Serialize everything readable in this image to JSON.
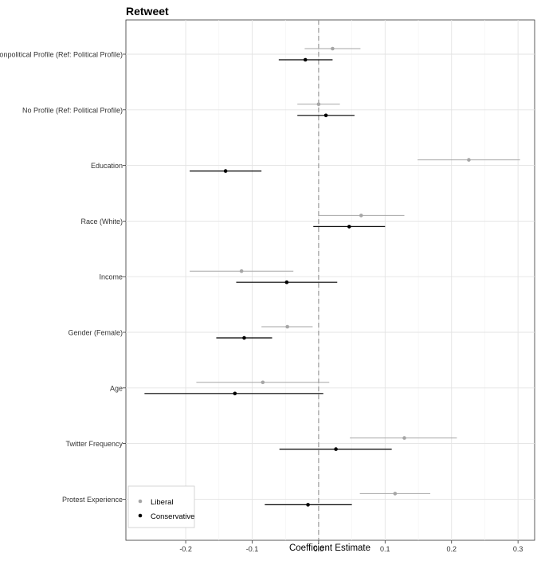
{
  "chart_data": {
    "type": "coefficient-plot",
    "title": "Retweet",
    "xlabel": "Coefficient Estimate",
    "ylabel": "",
    "xlim": [
      -0.29,
      0.325
    ],
    "x_ticks": [
      -0.2,
      -0.1,
      0.0,
      0.1,
      0.2,
      0.3
    ],
    "x_tick_labels": [
      "-0.2",
      "-0.1",
      "0.0",
      "0.1",
      "0.2",
      "0.3"
    ],
    "reference_line": 0.0,
    "grid": true,
    "legend_position": "bottom-left",
    "categories": [
      "Nonpolitical Profile (Ref: Political Profile)",
      "No Profile (Ref: Political Profile)",
      "Education",
      "Race (White)",
      "Income",
      "Gender (Female)",
      "Age",
      "Twitter Frequency",
      "Protest Experience"
    ],
    "series": [
      {
        "name": "Liberal",
        "color": "#a6a6a6",
        "estimates": [
          0.021,
          0.0,
          0.226,
          0.064,
          -0.116,
          -0.047,
          -0.084,
          0.129,
          0.115
        ],
        "ci_low": [
          -0.021,
          -0.032,
          0.149,
          0.0,
          -0.194,
          -0.086,
          -0.184,
          0.047,
          0.062
        ],
        "ci_high": [
          0.063,
          0.032,
          0.303,
          0.129,
          -0.038,
          -0.009,
          0.016,
          0.208,
          0.168
        ]
      },
      {
        "name": "Conservative",
        "color": "#000000",
        "estimates": [
          -0.02,
          0.011,
          -0.14,
          0.046,
          -0.048,
          -0.112,
          -0.126,
          0.026,
          -0.016
        ],
        "ci_low": [
          -0.06,
          -0.032,
          -0.194,
          -0.008,
          -0.124,
          -0.154,
          -0.262,
          -0.059,
          -0.081
        ],
        "ci_high": [
          0.021,
          0.054,
          -0.086,
          0.1,
          0.028,
          -0.07,
          0.007,
          0.11,
          0.05
        ]
      }
    ]
  }
}
